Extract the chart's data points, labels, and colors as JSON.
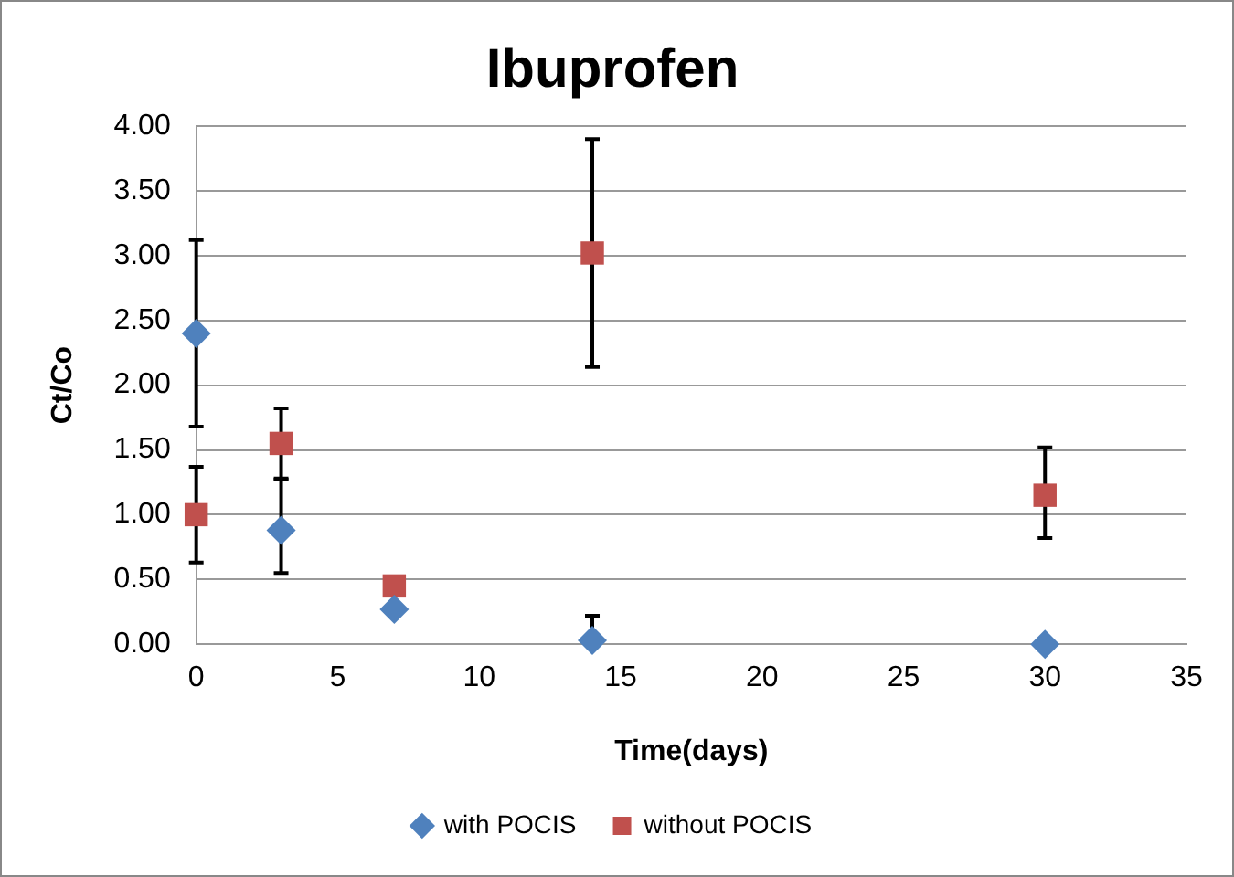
{
  "chart_data": {
    "type": "scatter",
    "title": "Ibuprofen",
    "xlabel": "Time(days)",
    "ylabel": "Ct/Co",
    "xlim": [
      0,
      35
    ],
    "xticks": [
      0,
      5,
      10,
      15,
      20,
      25,
      30,
      35
    ],
    "ylim": [
      0,
      4
    ],
    "yticks": [
      {
        "value": 0,
        "label": "0.00"
      },
      {
        "value": 0.5,
        "label": "0.50"
      },
      {
        "value": 1,
        "label": "1.00"
      },
      {
        "value": 1.5,
        "label": "1.50"
      },
      {
        "value": 2,
        "label": "2.00"
      },
      {
        "value": 2.5,
        "label": "2.50"
      },
      {
        "value": 3,
        "label": "3.00"
      },
      {
        "value": 3.5,
        "label": "3.50"
      },
      {
        "value": 4,
        "label": "4.00"
      }
    ],
    "grid": "y",
    "legend": "bottom",
    "series": [
      {
        "name": "with POCIS",
        "color": "#4f81bd",
        "marker": "diamond",
        "x": [
          0,
          3,
          7,
          14,
          30
        ],
        "values": [
          2.4,
          0.88,
          0.27,
          0.03,
          0.0
        ],
        "errors": [
          [
            1.68,
            3.12
          ],
          [
            0.55,
            1.27
          ],
          null,
          [
            0,
            0.22
          ],
          null
        ]
      },
      {
        "name": "without POCIS",
        "color": "#c0504d",
        "marker": "square",
        "x": [
          0,
          3,
          7,
          14,
          30
        ],
        "values": [
          1.0,
          1.55,
          0.45,
          3.02,
          1.15
        ],
        "errors": [
          [
            0.63,
            1.37
          ],
          [
            1.28,
            1.82
          ],
          null,
          [
            2.14,
            3.9
          ],
          [
            0.82,
            1.52
          ]
        ]
      }
    ]
  }
}
